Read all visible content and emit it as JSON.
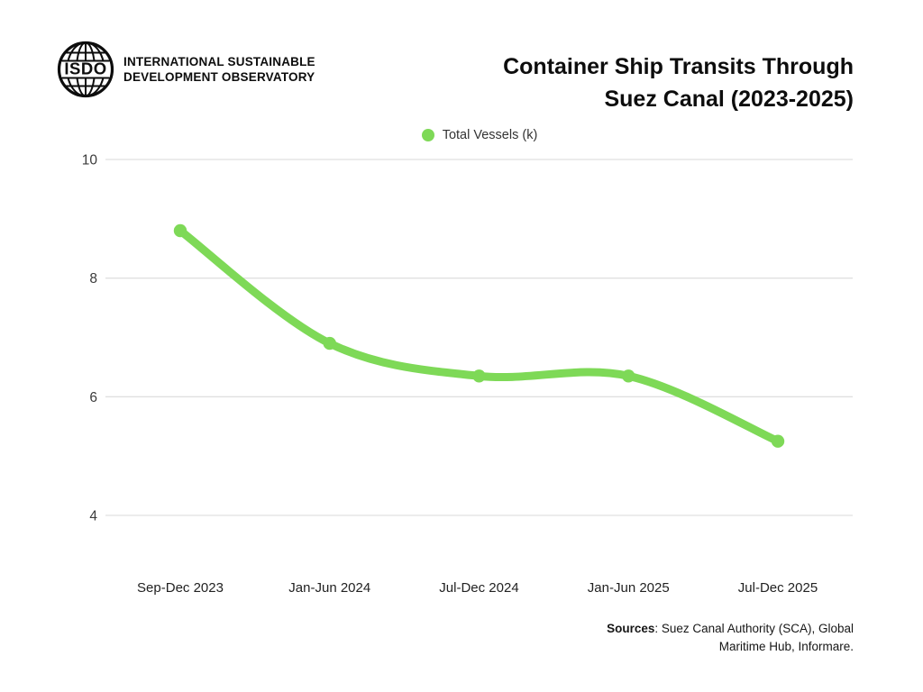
{
  "header": {
    "logo_text": "ISDO",
    "org_line1": "INTERNATIONAL SUSTAINABLE",
    "org_line2": "DEVELOPMENT OBSERVATORY",
    "title_line1": "Container Ship Transits Through",
    "title_line2": "Suez Canal (2023-2025)"
  },
  "legend": {
    "label": "Total Vessels (k)",
    "marker_color": "#7ED957"
  },
  "chart_data": {
    "type": "line",
    "title": "Container Ship Transits Through Suez Canal (2023-2025)",
    "categories": [
      "Sep-Dec 2023",
      "Jan-Jun 2024",
      "Jul-Dec 2024",
      "Jan-Jun 2025",
      "Jul-Dec 2025"
    ],
    "series": [
      {
        "name": "Total Vessels (k)",
        "values": [
          8.8,
          6.9,
          6.35,
          6.35,
          5.25
        ]
      }
    ],
    "xlabel": "",
    "ylabel": "",
    "yticks": [
      4,
      6,
      8,
      10
    ],
    "ylim": [
      4,
      10
    ],
    "grid": true,
    "legend_position": "top-center",
    "line_color": "#7ED957",
    "gridline_color": "#e0e0e0",
    "ytick_label_color": "#3b3b3b",
    "xtick_label_color": "#222222"
  },
  "footer": {
    "sources_label": "Sources",
    "sources_line1_rest": ":  Suez Canal Authority (SCA), Global",
    "sources_line2": "Maritime Hub, Informare."
  }
}
